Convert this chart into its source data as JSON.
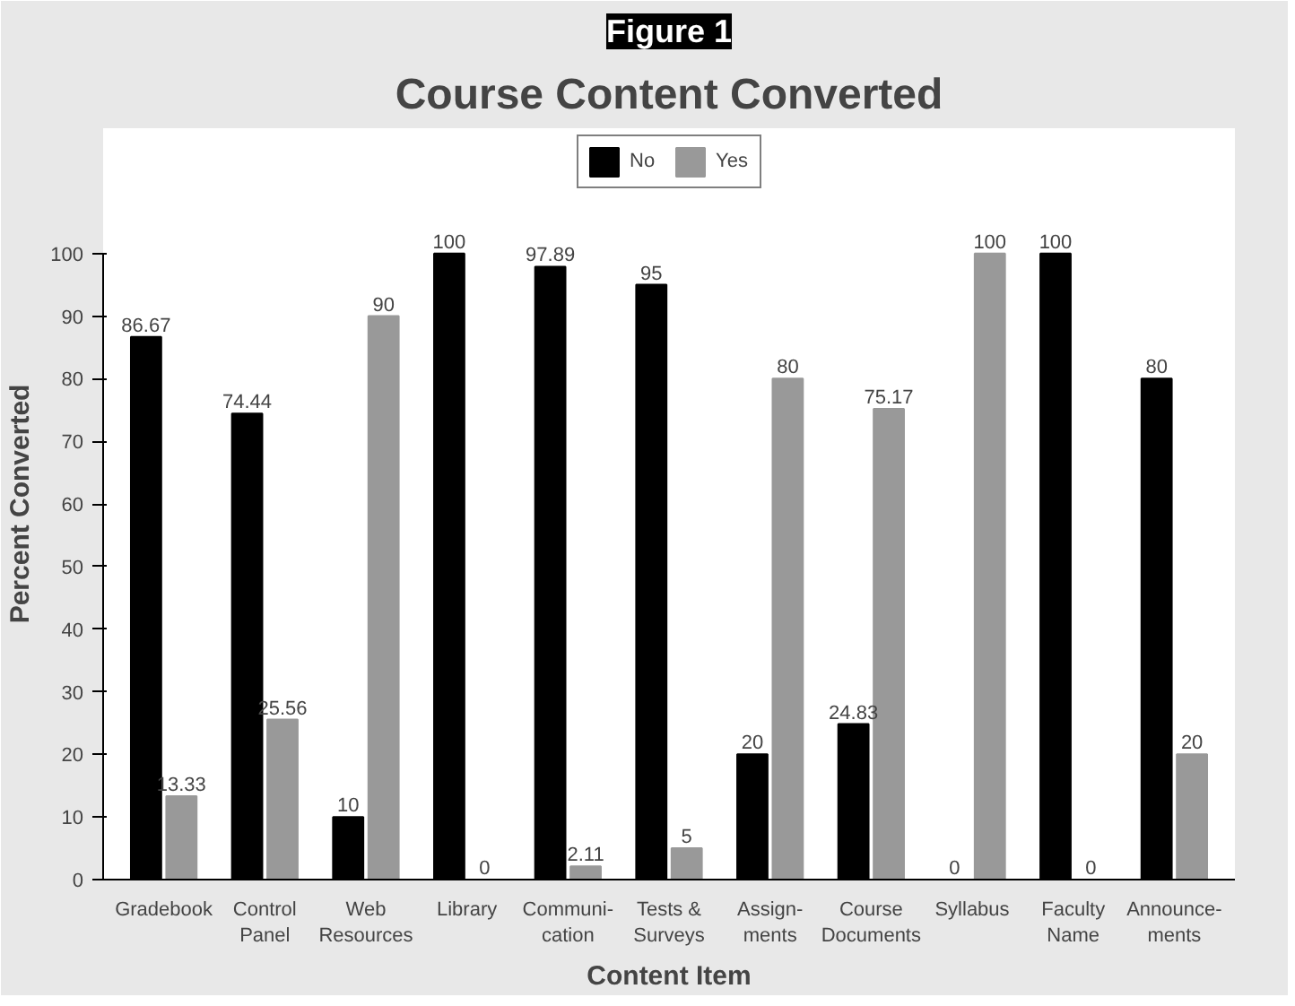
{
  "chart_data": {
    "type": "bar",
    "title": "Figure 1",
    "subtitle": "Course Content Converted",
    "xlabel": "Content Item",
    "ylabel": "Percent Converted",
    "categories": [
      "Gradebook",
      "Control\nPanel",
      "Web\nResources",
      "Library",
      "Communi-\ncation",
      "Tests &\nSurveys",
      "Assign-\nments",
      "Course\nDocuments",
      "Syllabus",
      "Faculty\nName",
      "Announce-\nments"
    ],
    "series": [
      {
        "name": "No",
        "color": "#000000",
        "values": [
          86.67,
          74.44,
          10,
          100,
          97.89,
          95,
          20,
          24.83,
          0,
          100,
          80
        ]
      },
      {
        "name": "Yes",
        "color": "#999999",
        "values": [
          13.33,
          25.56,
          90,
          0,
          2.11,
          5,
          80,
          75.17,
          100,
          0,
          20
        ]
      }
    ],
    "ylim": [
      0,
      100
    ],
    "yticks": [
      0,
      10,
      20,
      30,
      40,
      50,
      60,
      70,
      80,
      90,
      100
    ],
    "data_labels": true,
    "grid": false,
    "legend": "top"
  }
}
